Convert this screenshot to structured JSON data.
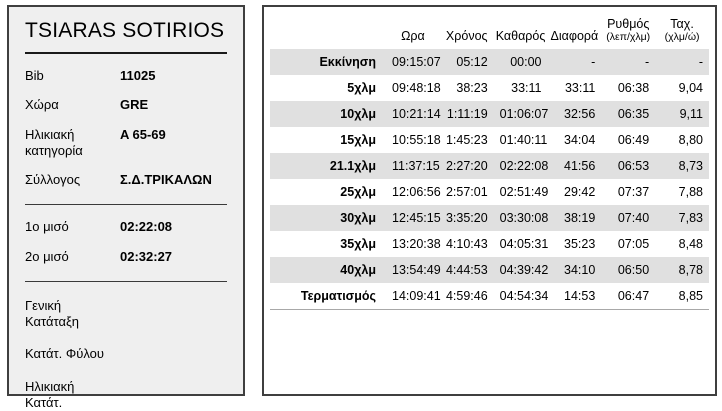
{
  "colors": {
    "panel_border": "#3f3f3f",
    "left_panel_bg": "#efefef",
    "row_stripe": "#e0e0e0",
    "text": "#000000"
  },
  "athlete_panel": {
    "name": "TSIARAS SOTIRIOS",
    "fields": [
      {
        "label": "Bib",
        "value": "11025"
      },
      {
        "label": "Χώρα",
        "value": "GRE"
      },
      {
        "label": "Ηλικιακή κατηγορία",
        "value": "A 65-69"
      },
      {
        "label": "Σύλλογος",
        "value": "Σ.Δ.ΤΡΙΚΑΛΩΝ"
      }
    ],
    "halves": [
      {
        "label": "1ο μισό",
        "value": "02:22:08"
      },
      {
        "label": "2ο μισό",
        "value": "02:32:27"
      }
    ],
    "rankings": [
      {
        "label": "Γενική Κατάταξη",
        "value": ""
      },
      {
        "label": "Κατάτ. Φύλου",
        "value": ""
      },
      {
        "label": "Ηλικιακή Κατάτ.",
        "value": ""
      }
    ]
  },
  "splits_table": {
    "columns": [
      {
        "label": "",
        "sub": ""
      },
      {
        "label": "Ωρα",
        "sub": ""
      },
      {
        "label": "Χρόνος",
        "sub": ""
      },
      {
        "label": "Καθαρός",
        "sub": ""
      },
      {
        "label": "Διαφορά",
        "sub": ""
      },
      {
        "label": "Ρυθμός",
        "sub": "(λεπ/χλμ)"
      },
      {
        "label": "Ταχ.",
        "sub": "(χλμ/ώ)"
      }
    ],
    "rows": [
      {
        "split": "Εκκίνηση",
        "cells": [
          "09:15:07",
          "05:12",
          "00:00",
          "-",
          "-",
          "-"
        ]
      },
      {
        "split": "5χλμ",
        "cells": [
          "09:48:18",
          "38:23",
          "33:11",
          "33:11",
          "06:38",
          "9,04"
        ]
      },
      {
        "split": "10χλμ",
        "cells": [
          "10:21:14",
          "1:11:19",
          "01:06:07",
          "32:56",
          "06:35",
          "9,11"
        ]
      },
      {
        "split": "15χλμ",
        "cells": [
          "10:55:18",
          "1:45:23",
          "01:40:11",
          "34:04",
          "06:49",
          "8,80"
        ]
      },
      {
        "split": "21.1χλμ",
        "cells": [
          "11:37:15",
          "2:27:20",
          "02:22:08",
          "41:56",
          "06:53",
          "8,73"
        ]
      },
      {
        "split": "25χλμ",
        "cells": [
          "12:06:56",
          "2:57:01",
          "02:51:49",
          "29:42",
          "07:37",
          "7,88"
        ]
      },
      {
        "split": "30χλμ",
        "cells": [
          "12:45:15",
          "3:35:20",
          "03:30:08",
          "38:19",
          "07:40",
          "7,83"
        ]
      },
      {
        "split": "35χλμ",
        "cells": [
          "13:20:38",
          "4:10:43",
          "04:05:31",
          "35:23",
          "07:05",
          "8,48"
        ]
      },
      {
        "split": "40χλμ",
        "cells": [
          "13:54:49",
          "4:44:53",
          "04:39:42",
          "34:10",
          "06:50",
          "8,78"
        ]
      },
      {
        "split": "Τερματισμός",
        "cells": [
          "14:09:41",
          "4:59:46",
          "04:54:34",
          "14:53",
          "06:47",
          "8,85"
        ]
      }
    ]
  }
}
